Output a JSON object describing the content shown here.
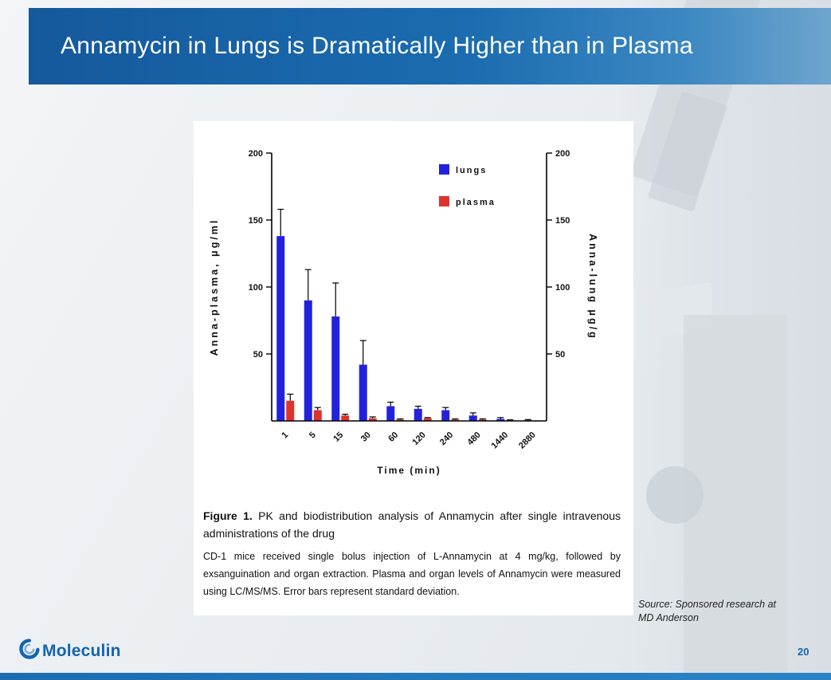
{
  "slide": {
    "title": "Annamycin in Lungs is Dramatically Higher than in Plasma",
    "page_number": "20",
    "logo_text": "Moleculin",
    "source": "Source: Sponsored research at MD Anderson"
  },
  "figure": {
    "caption_bold": "Figure 1.",
    "caption_rest": " PK and biodistribution analysis of Annamycin after single intravenous administrations of the drug",
    "body": "CD-1 mice received single bolus injection of L-Annamycin at 4 mg/kg, followed by exsanguination and organ extraction. Plasma and organ levels of Annamycin were measured using LC/MS/MS. Error bars represent standard deviation."
  },
  "chart_data": {
    "type": "bar",
    "categories": [
      "1",
      "5",
      "15",
      "30",
      "60",
      "120",
      "240",
      "480",
      "1440",
      "2880"
    ],
    "series": [
      {
        "name": "lungs",
        "color": "#2222dd",
        "values": [
          138,
          90,
          78,
          42,
          11,
          9,
          8,
          4,
          1.5,
          0.5
        ],
        "errors": [
          20,
          23,
          25,
          18,
          3,
          2,
          2,
          2,
          1,
          0.5
        ]
      },
      {
        "name": "plasma",
        "color": "#de332c",
        "values": [
          15,
          8,
          4,
          2,
          1,
          2,
          1,
          1,
          0.5,
          0.2
        ],
        "errors": [
          5,
          2,
          1,
          1,
          0.5,
          0.5,
          0.5,
          0.5,
          0.3,
          0.2
        ]
      }
    ],
    "title": "",
    "xlabel": "Time (min)",
    "ylabel_left": "Anna-plasma, μg/ml",
    "ylabel_right": "Anna-lung μg/g",
    "ylim": [
      0,
      200
    ],
    "yticks": [
      50,
      100,
      150,
      200
    ],
    "legend_position": "top-right",
    "grid": false
  }
}
